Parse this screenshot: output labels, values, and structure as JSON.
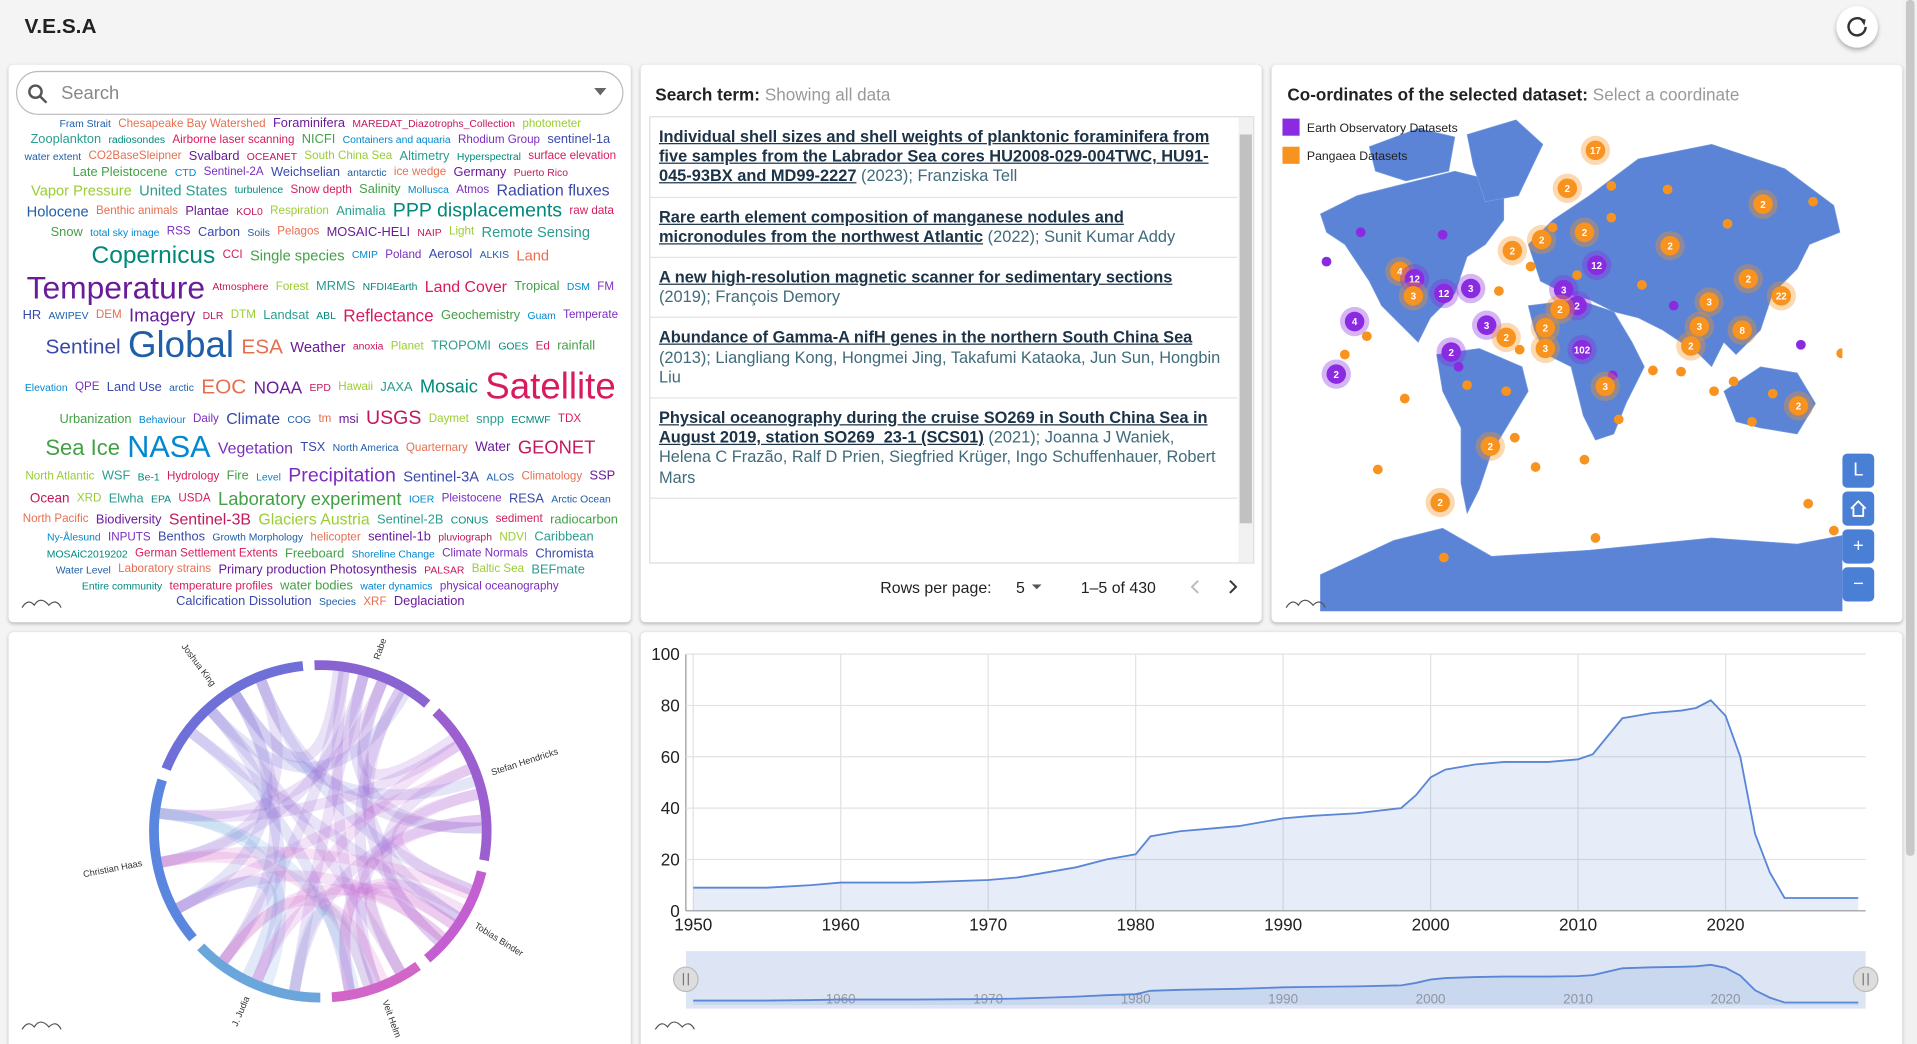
{
  "header": {
    "title": "V.E.S.A"
  },
  "word_cloud": {
    "search_placeholder": "Search",
    "words": [
      "Fram Strait",
      "Chesapeake Bay Watershed",
      "Foraminifera",
      "MAREDAT_Diazotrophs_Collection",
      "photometer",
      "Zooplankton",
      "radiosondes",
      "Airborne laser scanning",
      "NICFI",
      "Containers and aquaria",
      "Rhodium Group",
      "sentinel-1a",
      "water extent",
      "CO2BaseSleipner",
      "Svalbard",
      "OCEANET",
      "South China Sea",
      "Altimetry",
      "Hyperspectral",
      "surface elevation",
      "Late Pleistocene",
      "CTD",
      "Sentinel-2A",
      "Weichselian",
      "antarctic",
      "ice wedge",
      "Germany",
      "Puerto Rico",
      "Vapor Pressure",
      "United States",
      "turbulence",
      "Snow depth",
      "Salinity",
      "Mollusca",
      "Atmos",
      "Radiation fluxes",
      "Holocene",
      "Benthic animals",
      "Plantae",
      "KOL0",
      "Respiration",
      "Animalia",
      "PPP displacements",
      "raw data",
      "Snow",
      "total sky image",
      "RSS",
      "Carbon",
      "Soils",
      "Pelagos",
      "MOSAIC-HELI",
      "NAIP",
      "Light",
      "Remote Sensing",
      "Copernicus",
      "CCI",
      "Single species",
      "CMIP",
      "Poland",
      "Aerosol",
      "ALKIS",
      "Land",
      "Temperature",
      "Atmosphere",
      "Forest",
      "MRMS",
      "NFDI4Earth",
      "Land Cover",
      "Tropical",
      "DSM",
      "FM",
      "HR",
      "AWIPEV",
      "DEM",
      "Imagery",
      "DLR",
      "DTM",
      "Landsat",
      "ABL",
      "Reflectance",
      "Geochemistry",
      "Guam",
      "Temperate",
      "Sentinel",
      "Global",
      "ESA",
      "Weather",
      "anoxia",
      "Planet",
      "TROPOMI",
      "GOES",
      "Ed",
      "rainfall",
      "Elevation",
      "QPE",
      "Land Use",
      "arctic",
      "EOC",
      "NOAA",
      "EPD",
      "Hawaii",
      "JAXA",
      "Mosaic",
      "Satellite",
      "Urbanization",
      "Behaviour",
      "Daily",
      "Climate",
      "COG",
      "tm",
      "msi",
      "USGS",
      "Daymet",
      "snpp",
      "ECMWF",
      "TDX",
      "Sea Ice",
      "NASA",
      "Vegetation",
      "TSX",
      "North America",
      "Quarternary",
      "Water",
      "GEONET",
      "North Atlantic",
      "WSF",
      "Be-1",
      "Hydrology",
      "Fire",
      "Level",
      "Precipitation",
      "Sentinel-3A",
      "ALOS",
      "Climatology",
      "SSP",
      "Ocean",
      "XRD",
      "Elwha",
      "EPA",
      "USDA",
      "Laboratory experiment",
      "IOER",
      "Pleistocene",
      "RESA",
      "Arctic Ocean",
      "North Pacific",
      "Biodiversity",
      "Sentinel-3B",
      "Glaciers Austria",
      "Sentinel-2B",
      "CONUS",
      "sediment",
      "radiocarbon",
      "Ny-Ålesund",
      "INPUTS",
      "Benthos",
      "Growth Morphology",
      "helicopter",
      "sentinel-1b",
      "pluviograph",
      "NDVI",
      "Caribbean",
      "MOSAiC2019202",
      "German Settlement Extents",
      "Freeboard",
      "Shoreline Change",
      "Climate Normals",
      "Chromista",
      "Water Level",
      "Laboratory strains",
      "Primary production Photosynthesis",
      "PALSAR",
      "Baltic Sea",
      "BEFmate",
      "Entire community",
      "temperature profiles",
      "water bodies",
      "water dynamics",
      "physical oceanography",
      "Calcification Dissolution",
      "Species",
      "XRF",
      "Deglaciation"
    ]
  },
  "search_results": {
    "label": "Search term:",
    "term": "Showing all data",
    "rows": [
      {
        "title": "Individual shell sizes and shell weights of planktonic foraminifera from five samples from the Labrador Sea cores HU2008-029-004TWC, HU91-045-93BX and MD99-2227",
        "year": "(2023);",
        "authors": "Franziska Tell"
      },
      {
        "title": "Rare earth element composition of manganese nodules and micronodules from the northwest Atlantic",
        "year": "(2022);",
        "authors": "Sunit Kumar Addy"
      },
      {
        "title": "A new high-resolution magnetic scanner for sedimentary sections",
        "year": "(2019);",
        "authors": "François Demory"
      },
      {
        "title": "Abundance of Gamma-A nifH genes in the northern South China Sea",
        "year": "(2013);",
        "authors": "Liangliang Kong, Hongmei Jing, Takafumi Kataoka, Jun Sun, Hongbin Liu"
      },
      {
        "title": "Physical oceanography during the cruise SO269 in South China Sea in August 2019, station SO269_23-1 (SCS01)",
        "year": "(2021);",
        "authors": "Joanna J Waniek, Helena C Frazão, Ralf D Prien, Siegfried Krüger, Ingo Schuffenhauer, Robert Mars"
      }
    ],
    "rows_per_page_label": "Rows per page:",
    "rows_per_page": 5,
    "range": "1–5 of 430"
  },
  "map": {
    "label": "Co-ordinates of the selected dataset:",
    "placeholder": "Select a coordinate",
    "legend": [
      {
        "name": "Earth Observatory Datasets",
        "color": "#8a2be2"
      },
      {
        "name": "Pangaea Datasets",
        "color": "#f7931e"
      }
    ],
    "clusters": [
      {
        "label": "17",
        "series": 1
      },
      {
        "label": "2",
        "series": 1
      },
      {
        "label": "2",
        "series": 1
      },
      {
        "label": "2",
        "series": 1
      },
      {
        "label": "2",
        "series": 1
      },
      {
        "label": "2",
        "series": 1
      },
      {
        "label": "2",
        "series": 1
      },
      {
        "label": "4",
        "series": 1
      },
      {
        "label": "12",
        "series": 0
      },
      {
        "label": "3",
        "series": 1
      },
      {
        "label": "12",
        "series": 0
      },
      {
        "label": "3",
        "series": 0
      },
      {
        "label": "12",
        "series": 0
      },
      {
        "label": "3",
        "series": 0
      },
      {
        "label": "2",
        "series": 0
      },
      {
        "label": "2",
        "series": 1
      },
      {
        "label": "3",
        "series": 1
      },
      {
        "label": "2",
        "series": 1
      },
      {
        "label": "22",
        "series": 1
      },
      {
        "label": "4",
        "series": 0
      },
      {
        "label": "3",
        "series": 0
      },
      {
        "label": "2",
        "series": 1
      },
      {
        "label": "2",
        "series": 1
      },
      {
        "label": "3",
        "series": 1
      },
      {
        "label": "102",
        "series": 0
      },
      {
        "label": "3",
        "series": 1
      },
      {
        "label": "8",
        "series": 1
      },
      {
        "label": "2",
        "series": 1
      },
      {
        "label": "2",
        "series": 0
      },
      {
        "label": "2",
        "series": 0
      },
      {
        "label": "3",
        "series": 1
      },
      {
        "label": "2",
        "series": 1
      },
      {
        "label": "2",
        "series": 1
      },
      {
        "label": "2",
        "series": 1
      }
    ],
    "controls": [
      "L",
      "+",
      "−"
    ]
  },
  "chord": {
    "names": [
      "Joshua King",
      "Rabe",
      "Stefan Hendricks",
      "Tobias Binder",
      "Veit Helm",
      "J. Judia",
      "Christian Haas"
    ]
  },
  "chart_data": {
    "type": "line",
    "x": [
      1950,
      1955,
      1958,
      1960,
      1965,
      1970,
      1972,
      1974,
      1976,
      1978,
      1980,
      1981,
      1983,
      1985,
      1987,
      1990,
      1992,
      1995,
      1998,
      1999,
      2000,
      2001,
      2003,
      2005,
      2008,
      2010,
      2011,
      2012,
      2013,
      2015,
      2017,
      2018,
      2019,
      2020,
      2021,
      2022,
      2023,
      2024,
      2029
    ],
    "values": [
      9,
      9,
      10,
      11,
      11,
      12,
      13,
      15,
      17,
      20,
      22,
      29,
      31,
      32,
      33,
      36,
      37,
      38,
      40,
      45,
      52,
      55,
      57,
      58,
      58,
      59,
      61,
      68,
      75,
      77,
      78,
      79,
      82,
      76,
      60,
      30,
      15,
      5,
      5
    ],
    "xlim": [
      1949.5,
      2029.5
    ],
    "ylim": [
      0,
      100
    ],
    "xticks": [
      1950,
      1960,
      1970,
      1980,
      1990,
      2000,
      2010,
      2020
    ],
    "yticks": [
      0,
      20,
      40,
      60,
      80,
      100
    ],
    "color": "#5a86d6",
    "grid": true
  }
}
